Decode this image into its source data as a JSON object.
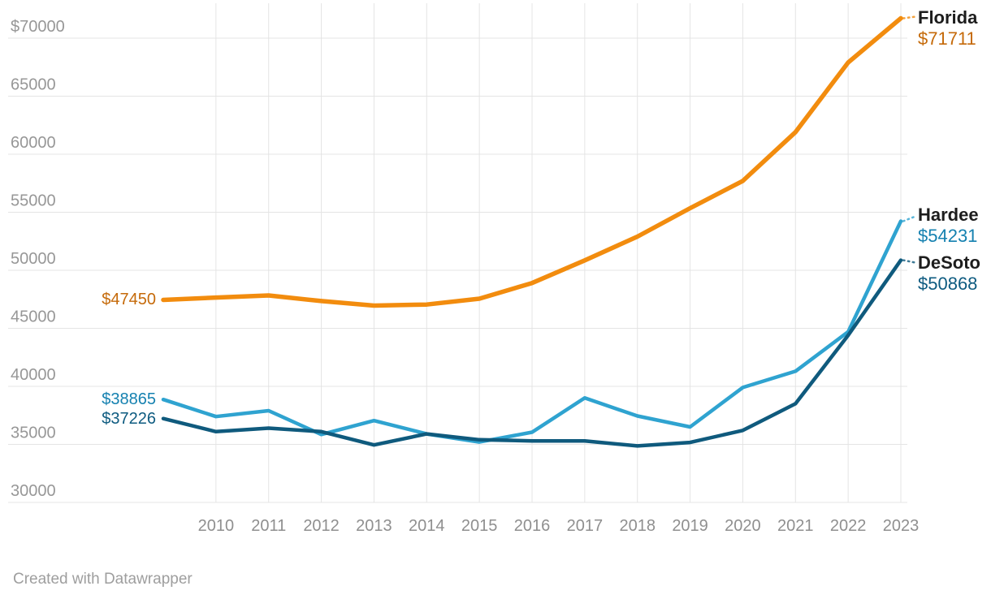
{
  "chart_data": {
    "type": "line",
    "title": "",
    "x": [
      2009,
      2010,
      2011,
      2012,
      2013,
      2014,
      2015,
      2016,
      2017,
      2018,
      2019,
      2020,
      2021,
      2022,
      2023
    ],
    "x_ticks": [
      "2010",
      "2011",
      "2012",
      "2013",
      "2014",
      "2015",
      "2016",
      "2017",
      "2018",
      "2019",
      "2020",
      "2021",
      "2022",
      "2023"
    ],
    "y_ticks": [
      {
        "label": "$70000",
        "value": 70000
      },
      {
        "label": "65000",
        "value": 65000
      },
      {
        "label": "60000",
        "value": 60000
      },
      {
        "label": "55000",
        "value": 55000
      },
      {
        "label": "50000",
        "value": 50000
      },
      {
        "label": "45000",
        "value": 45000
      },
      {
        "label": "40000",
        "value": 40000
      },
      {
        "label": "35000",
        "value": 35000
      },
      {
        "label": "30000",
        "value": 30000
      }
    ],
    "ylim": [
      30000,
      72000
    ],
    "grid": true,
    "legend": "direct-labels-right",
    "series": [
      {
        "name": "Florida",
        "color": "#F28C0E",
        "label_color": "#C56A0A",
        "start_label": "$47450",
        "end_label": "$71711",
        "values": [
          47450,
          47650,
          47830,
          47350,
          46960,
          47050,
          47550,
          48900,
          50850,
          52900,
          55350,
          57700,
          61900,
          67900,
          71711
        ]
      },
      {
        "name": "Hardee",
        "color": "#2FA3D0",
        "label_color": "#1581B0",
        "start_label": "$38865",
        "end_label": "$54231",
        "values": [
          38865,
          37400,
          37900,
          35850,
          37050,
          35900,
          35200,
          36050,
          39000,
          37450,
          36500,
          39900,
          41300,
          44700,
          54231
        ]
      },
      {
        "name": "DeSoto",
        "color": "#0F5A7D",
        "label_color": "#0E5B80",
        "start_label": "$37226",
        "end_label": "$50868",
        "values": [
          37226,
          36100,
          36400,
          36100,
          34950,
          35900,
          35400,
          35300,
          35300,
          34870,
          35170,
          36200,
          38500,
          44400,
          50868
        ]
      }
    ],
    "colors": {
      "grid": "#e4e4e4",
      "axis_text_y": "#979797",
      "axis_text_x": "#8f8f8f",
      "series_name_text": "#1d1d1d",
      "background": "#ffffff"
    }
  },
  "footer": {
    "credit": "Created with Datawrapper"
  }
}
